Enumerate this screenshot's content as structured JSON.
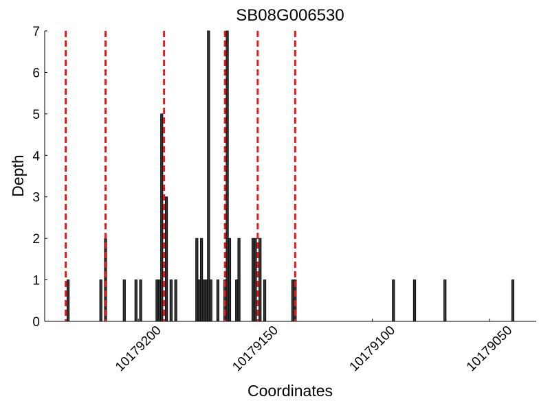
{
  "chart_data": {
    "type": "bar",
    "title": "SB08G006530",
    "xlabel": "Coordinates",
    "ylabel": "Depth",
    "x": [
      10179230,
      10179216,
      10179214,
      10179206,
      10179201,
      10179199,
      10179192,
      10179191,
      10179190,
      10179188,
      10179186,
      10179184,
      10179175,
      10179174,
      10179173,
      10179172,
      10179171,
      10179170,
      10179169,
      10179166,
      10179163,
      10179162,
      10179161,
      10179158,
      10179157,
      10179151,
      10179150,
      10179148,
      10179146,
      10179134,
      10179133,
      10179091,
      10179082,
      10179069,
      10179040
    ],
    "values": [
      1,
      1,
      2,
      1,
      1,
      1,
      1,
      1,
      5,
      3,
      1,
      1,
      2,
      1,
      2,
      1,
      1,
      7,
      1,
      1,
      1,
      7,
      2,
      1,
      2,
      2,
      2,
      2,
      1,
      1,
      1,
      1,
      1,
      1,
      1
    ],
    "color": "#333333",
    "markers": {
      "values": [
        10179231,
        10179214,
        10179189,
        10179163,
        10179149,
        10179133
      ],
      "color": "#e41a1c"
    },
    "xlim": [
      10179240,
      10179030
    ],
    "xticks": [
      10179200,
      10179150,
      10179100,
      10179050
    ],
    "ylim": [
      0,
      7
    ],
    "yticks": [
      0,
      1,
      2,
      3,
      4,
      5,
      6,
      7
    ]
  }
}
